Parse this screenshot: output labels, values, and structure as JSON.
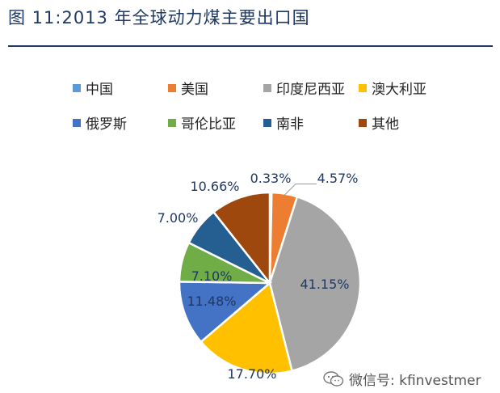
{
  "title": "图 11:2013 年全球动力煤主要出口国",
  "watermark": {
    "text": "微信号: kfinvestmer",
    "icon": "wechat-icon"
  },
  "chart_data": {
    "type": "pie",
    "legend_position": "top",
    "start_angle_deg": 0,
    "direction": "clockwise",
    "slices": [
      {
        "name": "中国",
        "value": 0.33,
        "label": "0.33%",
        "color": "#5b9bd5"
      },
      {
        "name": "美国",
        "value": 4.57,
        "label": "4.57%",
        "color": "#ed7d31"
      },
      {
        "name": "印度尼西亚",
        "value": 41.15,
        "label": "41.15%",
        "color": "#a5a5a5"
      },
      {
        "name": "澳大利亚",
        "value": 17.7,
        "label": "17.70%",
        "color": "#ffc000"
      },
      {
        "name": "俄罗斯",
        "value": 11.48,
        "label": "11.48%",
        "color": "#4472c4"
      },
      {
        "name": "哥伦比亚",
        "value": 7.1,
        "label": "7.10%",
        "color": "#70ad47"
      },
      {
        "name": "南非",
        "value": 7.0,
        "label": "7.00%",
        "color": "#255e91"
      },
      {
        "name": "其他",
        "value": 10.66,
        "label": "10.66%",
        "color": "#9e480e"
      }
    ]
  }
}
